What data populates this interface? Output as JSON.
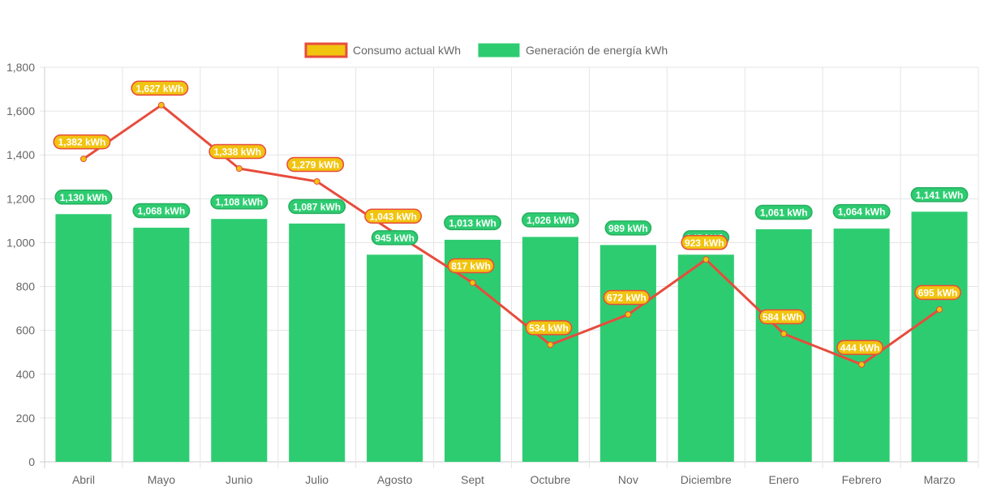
{
  "chart_data": {
    "type": "bar",
    "title": "",
    "xlabel": "",
    "ylabel": "",
    "ylim": [
      0,
      1800
    ],
    "yticks": [
      "0",
      "200",
      "400",
      "600",
      "800",
      "1,000",
      "1,200",
      "1,400",
      "1,600",
      "1,800"
    ],
    "ytick_values": [
      0,
      200,
      400,
      600,
      800,
      1000,
      1200,
      1400,
      1600,
      1800
    ],
    "grid": true,
    "legend_position": "top-center",
    "categories": [
      "Abril",
      "Mayo",
      "Junio",
      "Julio",
      "Agosto",
      "Sept",
      "Octubre",
      "Nov",
      "Diciembre",
      "Enero",
      "Febrero",
      "Marzo"
    ],
    "series": [
      {
        "name": "Consumo actual kWh",
        "type": "line",
        "color": "#e74c3c",
        "point_color": "#f1c40f",
        "values": [
          1382,
          1627,
          1338,
          1279,
          1043,
          817,
          534,
          672,
          923,
          584,
          444,
          695
        ],
        "labels": [
          "1,382 kWh",
          "1,627 kWh",
          "1,338 kWh",
          "1,279 kWh",
          "1,043 kWh",
          "817 kWh",
          "534 kWh",
          "672 kWh",
          "923 kWh",
          "584 kWh",
          "444 kWh",
          "695 kWh"
        ]
      },
      {
        "name": "Generación de energía kWh",
        "type": "bar",
        "color": "#2ecc71",
        "values": [
          1130,
          1068,
          1108,
          1087,
          945,
          1013,
          1026,
          989,
          945,
          1061,
          1064,
          1141
        ],
        "labels": [
          "1,130 kWh",
          "1,068 kWh",
          "1,108 kWh",
          "1,087 kWh",
          "945 kWh",
          "1,013 kWh",
          "1,026 kWh",
          "989 kWh",
          "945 kWh",
          "1,061 kWh",
          "1,064 kWh",
          "1,141 kWh"
        ]
      }
    ]
  }
}
